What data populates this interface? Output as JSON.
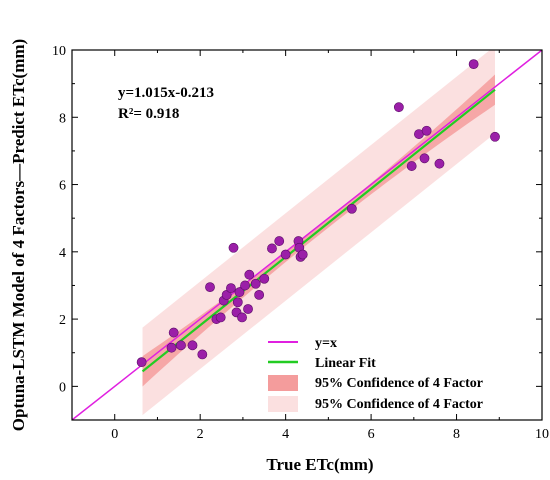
{
  "chart_data": {
    "type": "scatter",
    "xlabel": "True ETc(mm)",
    "ylabel": "Optuna-LSTM Model of 4 Factors—Predict ETc(mm)",
    "xlim": [
      -1,
      10
    ],
    "ylim": [
      -1,
      10
    ],
    "xticks": [
      "0",
      "2",
      "4",
      "6",
      "8",
      "10"
    ],
    "yticks": [
      "0",
      "2",
      "4",
      "6",
      "8",
      "10"
    ],
    "annotations": {
      "equation": "y=1.015x-0.213",
      "r2": "R²= 0.918"
    },
    "fit": {
      "slope": 1.015,
      "intercept": -0.213,
      "x_range": [
        0.65,
        8.9
      ]
    },
    "confidence_band": {
      "half_width_at_ends": 0.45,
      "half_width_at_center": 0.14
    },
    "prediction_band": {
      "half_width": 1.3
    },
    "legend": [
      {
        "key": "identity",
        "label": "y=x",
        "color": "#e020e0"
      },
      {
        "key": "fit",
        "label": "Linear Fit",
        "color": "#22cc22"
      },
      {
        "key": "conf",
        "label": "95% Confidence of 4 Factor",
        "color": "#f49c9c"
      },
      {
        "key": "pred",
        "label": "95% Confidence of 4 Factor",
        "color": "#fbe0e0"
      }
    ],
    "point_color": "#9b1fa8",
    "points": [
      {
        "x": 0.63,
        "y": 0.72
      },
      {
        "x": 1.33,
        "y": 1.15
      },
      {
        "x": 1.38,
        "y": 1.6
      },
      {
        "x": 1.55,
        "y": 1.22
      },
      {
        "x": 1.82,
        "y": 1.22
      },
      {
        "x": 2.05,
        "y": 0.95
      },
      {
        "x": 2.23,
        "y": 2.95
      },
      {
        "x": 2.38,
        "y": 2.0
      },
      {
        "x": 2.48,
        "y": 2.05
      },
      {
        "x": 2.55,
        "y": 2.55
      },
      {
        "x": 2.62,
        "y": 2.72
      },
      {
        "x": 2.72,
        "y": 2.92
      },
      {
        "x": 2.78,
        "y": 4.12
      },
      {
        "x": 2.85,
        "y": 2.2
      },
      {
        "x": 2.88,
        "y": 2.5
      },
      {
        "x": 2.92,
        "y": 2.8
      },
      {
        "x": 2.98,
        "y": 2.05
      },
      {
        "x": 3.05,
        "y": 3.0
      },
      {
        "x": 3.12,
        "y": 2.3
      },
      {
        "x": 3.15,
        "y": 3.32
      },
      {
        "x": 3.3,
        "y": 3.05
      },
      {
        "x": 3.38,
        "y": 2.72
      },
      {
        "x": 3.5,
        "y": 3.2
      },
      {
        "x": 3.68,
        "y": 4.1
      },
      {
        "x": 3.85,
        "y": 4.32
      },
      {
        "x": 4.0,
        "y": 3.92
      },
      {
        "x": 4.3,
        "y": 4.32
      },
      {
        "x": 4.32,
        "y": 4.12
      },
      {
        "x": 4.35,
        "y": 3.85
      },
      {
        "x": 4.4,
        "y": 3.92
      },
      {
        "x": 5.55,
        "y": 5.28
      },
      {
        "x": 6.65,
        "y": 8.3
      },
      {
        "x": 6.95,
        "y": 6.55
      },
      {
        "x": 7.12,
        "y": 7.5
      },
      {
        "x": 7.25,
        "y": 6.78
      },
      {
        "x": 7.3,
        "y": 7.6
      },
      {
        "x": 7.6,
        "y": 6.62
      },
      {
        "x": 8.4,
        "y": 9.58
      },
      {
        "x": 8.9,
        "y": 7.42
      }
    ]
  }
}
